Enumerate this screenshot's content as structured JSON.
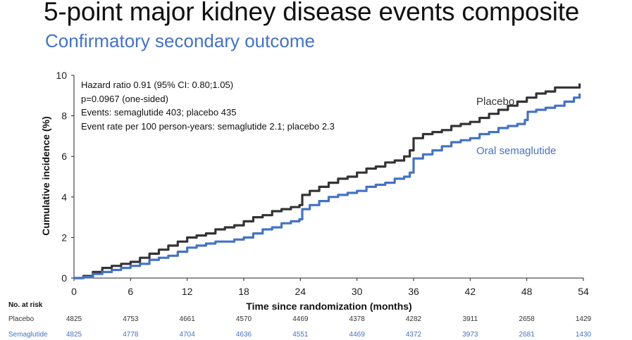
{
  "title": "5-point major kidney disease events composite",
  "subtitle": "Confirmatory secondary outcome",
  "chart_data": {
    "type": "line",
    "xlabel": "Time since randomization (months)",
    "ylabel": "Cumulative incidence (%)",
    "xlim": [
      0,
      54
    ],
    "ylim": [
      0,
      10
    ],
    "xticks": [
      "0",
      "6",
      "12",
      "18",
      "24",
      "30",
      "36",
      "42",
      "48",
      "54"
    ],
    "yticks": [
      "0",
      "2",
      "4",
      "6",
      "8",
      "10"
    ],
    "grid": false,
    "annotations": [
      "Hazard ratio 0.91 (95% CI: 0.80;1.05)",
      "p=0.0967 (one-sided)",
      "Events: semaglutide 403; placebo 435",
      "Event rate per 100 person-years: semaglutide 2.1; placebo 2.3"
    ],
    "series": [
      {
        "name": "Placebo",
        "color": "#333333",
        "x": [
          0,
          1,
          2,
          3,
          4,
          5,
          6,
          7,
          8,
          9,
          10,
          11,
          12,
          13,
          14,
          15,
          16,
          17,
          18,
          19,
          20,
          21,
          22,
          23,
          23.9,
          24.2,
          25,
          26,
          27,
          28,
          29,
          30,
          31,
          32,
          33,
          34,
          35,
          35.6,
          36,
          37,
          38,
          39,
          40,
          41,
          42,
          43,
          44,
          45,
          46,
          47,
          48,
          49,
          50,
          51,
          52,
          53,
          53.6
        ],
        "y": [
          0,
          0.1,
          0.3,
          0.5,
          0.6,
          0.7,
          0.8,
          1.0,
          1.2,
          1.4,
          1.6,
          1.8,
          2.0,
          2.1,
          2.2,
          2.4,
          2.5,
          2.6,
          2.8,
          3.0,
          3.1,
          3.3,
          3.4,
          3.5,
          3.6,
          4.1,
          4.3,
          4.5,
          4.7,
          4.9,
          5.0,
          5.2,
          5.4,
          5.5,
          5.7,
          5.8,
          6.0,
          6.3,
          6.9,
          7.1,
          7.2,
          7.3,
          7.5,
          7.6,
          7.7,
          7.9,
          8.1,
          8.3,
          8.5,
          8.7,
          8.9,
          9.1,
          9.2,
          9.4,
          9.4,
          9.4,
          9.6
        ]
      },
      {
        "name": "Oral semaglutide",
        "color": "#4472c4",
        "x": [
          0,
          1,
          2,
          3,
          4,
          5,
          6,
          7,
          8,
          9,
          10,
          11,
          12,
          13,
          14,
          15,
          16,
          17,
          18,
          19,
          20,
          21,
          22,
          23,
          23.9,
          24.2,
          25,
          26,
          27,
          28,
          29,
          30,
          31,
          32,
          33,
          34,
          35,
          35.6,
          36,
          37,
          38,
          39,
          40,
          41,
          42,
          43,
          44,
          45,
          46,
          47,
          47.8,
          48.1,
          49,
          50,
          51,
          52,
          53,
          53.6
        ],
        "y": [
          0,
          0.05,
          0.2,
          0.3,
          0.4,
          0.5,
          0.6,
          0.7,
          0.9,
          1.0,
          1.1,
          1.3,
          1.5,
          1.6,
          1.7,
          1.8,
          1.8,
          1.9,
          2.0,
          2.2,
          2.4,
          2.5,
          2.7,
          2.8,
          2.9,
          3.4,
          3.6,
          3.8,
          4.0,
          4.1,
          4.2,
          4.3,
          4.5,
          4.6,
          4.7,
          4.9,
          5.0,
          5.2,
          5.9,
          6.1,
          6.3,
          6.5,
          6.7,
          6.8,
          6.9,
          7.1,
          7.2,
          7.4,
          7.5,
          7.6,
          7.8,
          8.2,
          8.3,
          8.4,
          8.5,
          8.7,
          8.9,
          9.1
        ]
      }
    ]
  },
  "series_labels": {
    "placebo": "Placebo",
    "semaglutide": "Oral semaglutide"
  },
  "risk_table": {
    "header": "No. at risk",
    "rows": [
      {
        "label": "Placebo",
        "values": [
          "4825",
          "4753",
          "4661",
          "4570",
          "4469",
          "4378",
          "4282",
          "3911",
          "2658",
          "1429"
        ]
      },
      {
        "label": "Semaglutide",
        "values": [
          "4825",
          "4778",
          "4704",
          "4636",
          "4551",
          "4469",
          "4372",
          "3973",
          "2681",
          "1430"
        ]
      }
    ]
  },
  "colors": {
    "placebo": "#333333",
    "semaglutide": "#4472c4",
    "subtitle": "#4472c4"
  }
}
